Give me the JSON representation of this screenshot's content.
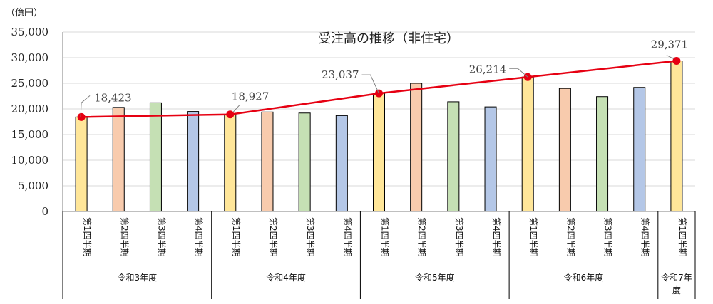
{
  "chart_data": {
    "type": "bar",
    "title": "受注高の推移（非住宅）",
    "unit": "（億円）",
    "ylim": [
      0,
      35000
    ],
    "y_ticks": [
      "0",
      "5,000",
      "10,000",
      "15,000",
      "20,000",
      "25,000",
      "30,000",
      "35,000"
    ],
    "y_tick_values": [
      0,
      5000,
      10000,
      15000,
      20000,
      25000,
      30000,
      35000
    ],
    "grid": true,
    "categories": [
      {
        "label": "第1四半期",
        "group": "令和3年度",
        "value": 18423,
        "color": "#FFE699"
      },
      {
        "label": "第2四半期",
        "group": "令和3年度",
        "value": 20300,
        "color": "#F8CBAD"
      },
      {
        "label": "第3四半期",
        "group": "令和3年度",
        "value": 21200,
        "color": "#C5E0B4"
      },
      {
        "label": "第4四半期",
        "group": "令和3年度",
        "value": 19500,
        "color": "#B4C7E7"
      },
      {
        "label": "第1四半期",
        "group": "令和4年度",
        "value": 18927,
        "color": "#FFE699"
      },
      {
        "label": "第2四半期",
        "group": "令和4年度",
        "value": 19400,
        "color": "#F8CBAD"
      },
      {
        "label": "第3四半期",
        "group": "令和4年度",
        "value": 19200,
        "color": "#C5E0B4"
      },
      {
        "label": "第4四半期",
        "group": "令和4年度",
        "value": 18700,
        "color": "#B4C7E7"
      },
      {
        "label": "第1四半期",
        "group": "令和5年度",
        "value": 23037,
        "color": "#FFE699"
      },
      {
        "label": "第2四半期",
        "group": "令和5年度",
        "value": 25000,
        "color": "#F8CBAD"
      },
      {
        "label": "第3四半期",
        "group": "令和5年度",
        "value": 21400,
        "color": "#C5E0B4"
      },
      {
        "label": "第4四半期",
        "group": "令和5年度",
        "value": 20400,
        "color": "#B4C7E7"
      },
      {
        "label": "第1四半期",
        "group": "令和6年度",
        "value": 26214,
        "color": "#FFE699"
      },
      {
        "label": "第2四半期",
        "group": "令和6年度",
        "value": 24000,
        "color": "#F8CBAD"
      },
      {
        "label": "第3四半期",
        "group": "令和6年度",
        "value": 22400,
        "color": "#C5E0B4"
      },
      {
        "label": "第4四半期",
        "group": "令和6年度",
        "value": 24200,
        "color": "#B4C7E7"
      },
      {
        "label": "第1四半期",
        "group": "令和7年度",
        "value": 29371,
        "color": "#FFE699"
      }
    ],
    "groups": [
      {
        "label": "令和3年度",
        "count": 4
      },
      {
        "label": "令和4年度",
        "count": 4
      },
      {
        "label": "令和5年度",
        "count": 4
      },
      {
        "label": "令和6年度",
        "count": 4
      },
      {
        "label": "令和7年度",
        "count": 1
      }
    ],
    "line_series": {
      "color": "#E60012",
      "points": [
        {
          "index": 0,
          "value": 18423,
          "label": "18,423"
        },
        {
          "index": 4,
          "value": 18927,
          "label": "18,927"
        },
        {
          "index": 8,
          "value": 23037,
          "label": "23,037"
        },
        {
          "index": 12,
          "value": 26214,
          "label": "26,214"
        },
        {
          "index": 16,
          "value": 29371,
          "label": "29,371"
        }
      ]
    }
  }
}
